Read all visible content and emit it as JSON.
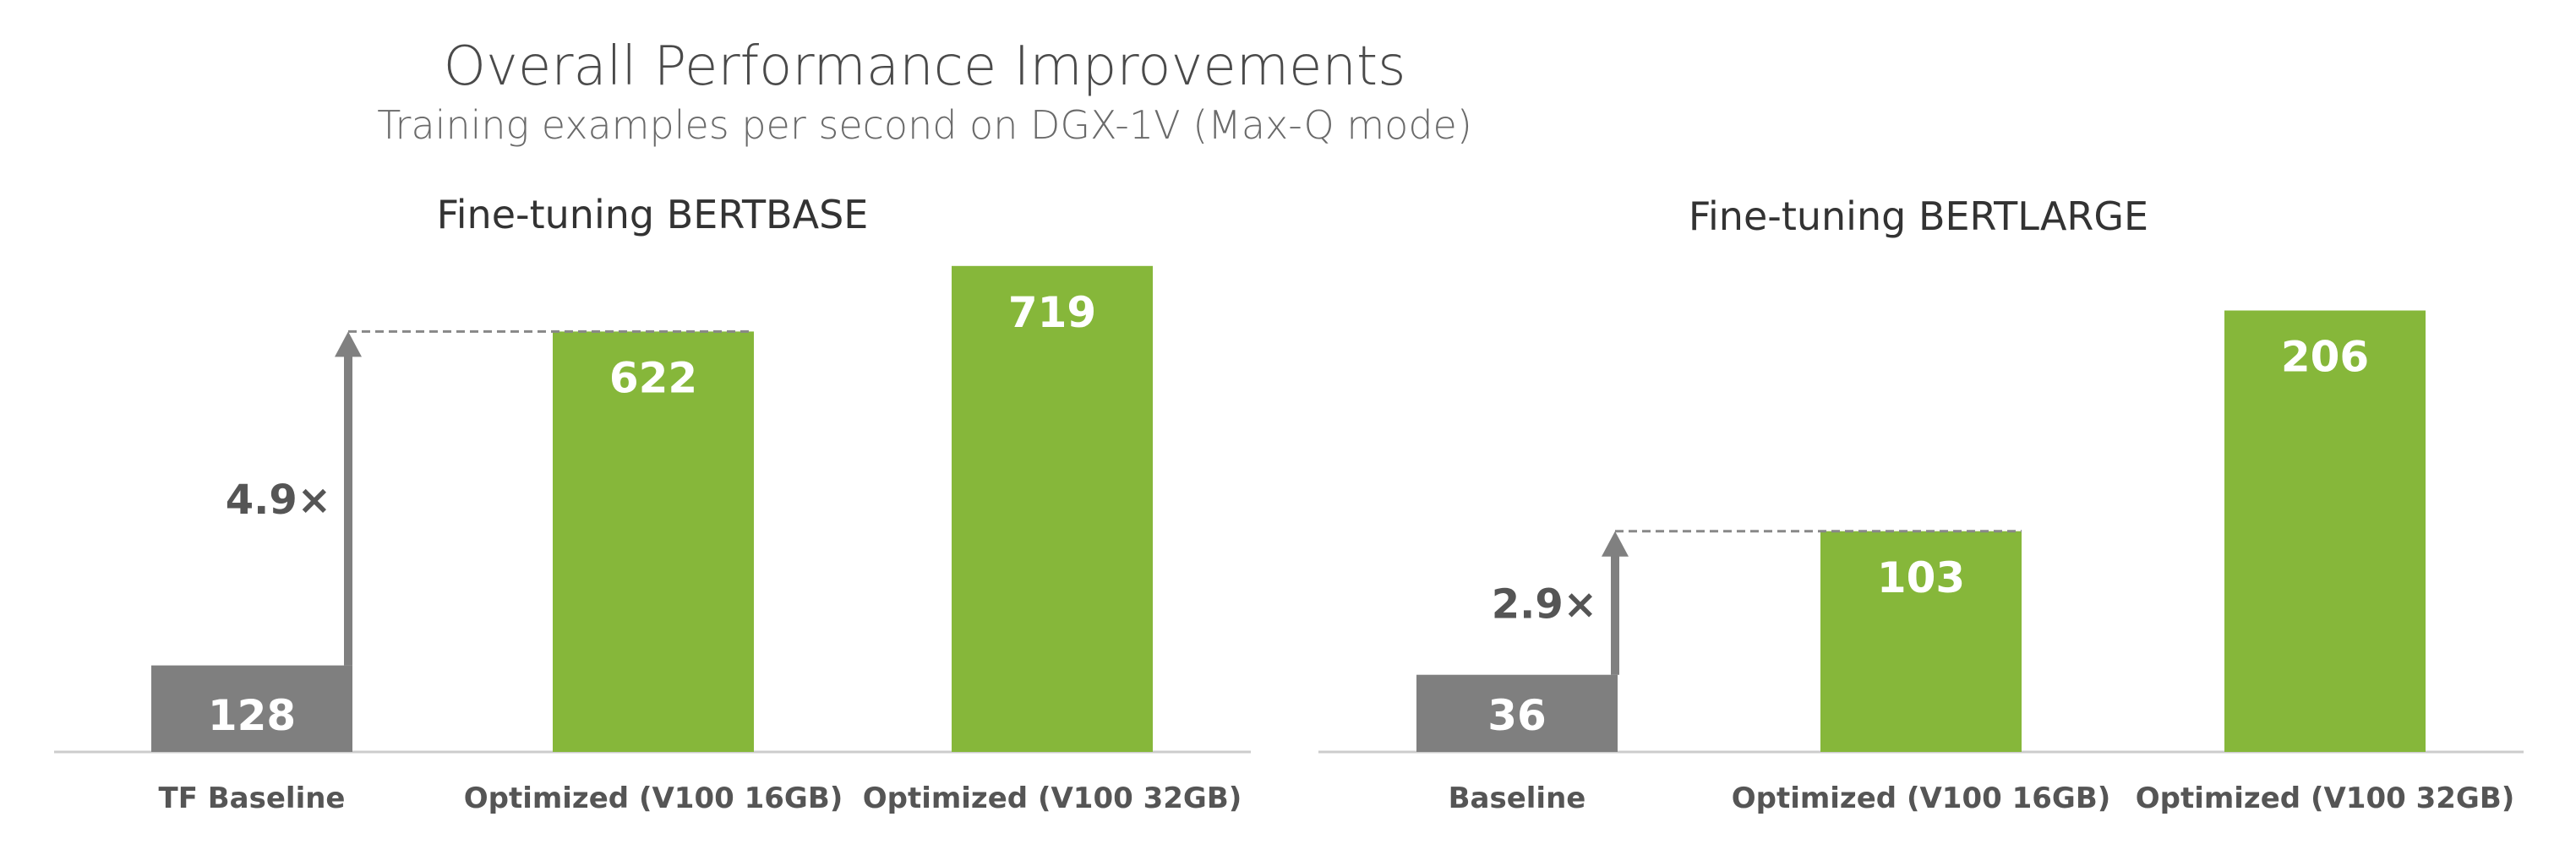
{
  "title": "Overall Performance Improvements",
  "subtitle": "Training examples per second on DGX-1V (Max-Q mode)",
  "colors": {
    "baseline": "#7f7f7f",
    "optimized": "#86b73a",
    "axis": "#cccccc",
    "arrow": "#808080"
  },
  "chart_data": [
    {
      "type": "bar",
      "title": "Fine-tuning BERTBASE",
      "categories": [
        "TF Baseline",
        "Optimized (V100 16GB)",
        "Optimized (V100 32GB)"
      ],
      "values": [
        128,
        622,
        719
      ],
      "value_labels": [
        "128",
        "622",
        "719"
      ],
      "speedup_label": "4.9×",
      "ylim": [
        0,
        750
      ]
    },
    {
      "type": "bar",
      "title": "Fine-tuning BERTLARGE",
      "categories": [
        "Baseline",
        "Optimized (V100 16GB)",
        "Optimized (V100 32GB)"
      ],
      "values": [
        36,
        103,
        206
      ],
      "value_labels": [
        "36",
        "103",
        "206"
      ],
      "speedup_label": "2.9×",
      "ylim": [
        0,
        220
      ]
    }
  ]
}
